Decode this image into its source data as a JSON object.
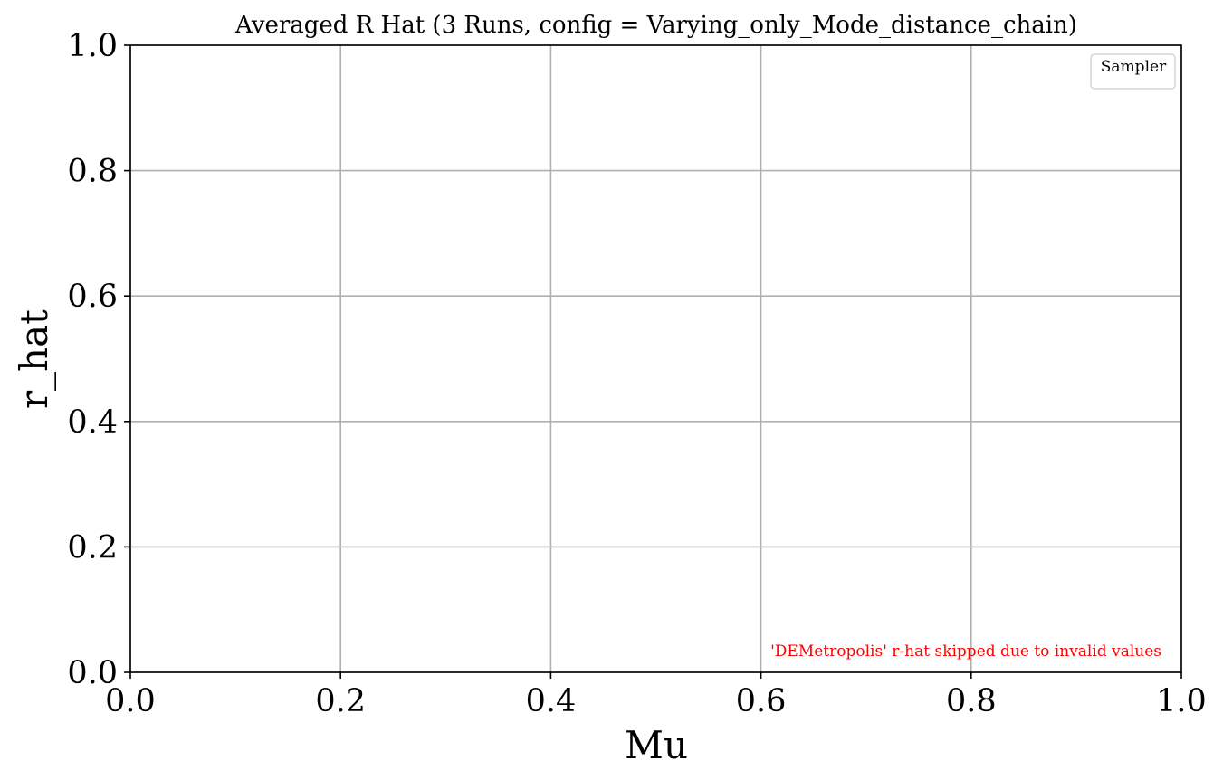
{
  "chart_data": {
    "type": "line",
    "title": "Averaged R Hat (3 Runs, config = Varying_only_Mode_distance_chain)",
    "xlabel": "Mu",
    "ylabel": "r_hat",
    "xlim": [
      0.0,
      1.0
    ],
    "ylim": [
      0.0,
      1.0
    ],
    "xticks": [
      0.0,
      0.2,
      0.4,
      0.6,
      0.8,
      1.0
    ],
    "xtick_labels": [
      "0.0",
      "0.2",
      "0.4",
      "0.6",
      "0.8",
      "1.0"
    ],
    "yticks": [
      0.0,
      0.2,
      0.4,
      0.6,
      0.8,
      1.0
    ],
    "ytick_labels": [
      "0.0",
      "0.2",
      "0.4",
      "0.6",
      "0.8",
      "1.0"
    ],
    "grid": true,
    "legend": {
      "title": "Sampler",
      "placement": "upper-right",
      "entries": []
    },
    "series": [],
    "annotation": {
      "text": "'DEMetropolis' r-hat skipped due to invalid values",
      "color": "#ff0000",
      "placement": "lower-right"
    },
    "colors": {
      "grid": "#b0b0b0",
      "axes": "#000000",
      "annotation": "#ff0000"
    }
  }
}
